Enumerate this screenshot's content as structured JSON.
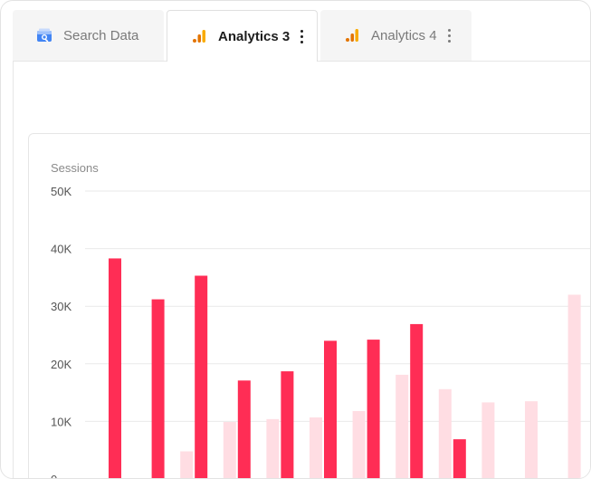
{
  "tabs": [
    {
      "label": "Search Data",
      "icon": "search-console-icon"
    },
    {
      "label": "Analytics 3",
      "icon": "analytics-bars-icon"
    },
    {
      "label": "Analytics 4",
      "icon": "analytics-bars-icon"
    }
  ],
  "colors": {
    "primary_series": "#ff2d55",
    "secondary_series": "#ffdde3",
    "analytics_orange": "#f9ab00",
    "analytics_dark": "#e37400"
  },
  "chart_data": {
    "type": "bar",
    "ylabel": "Sessions",
    "ylim": [
      0,
      50000
    ],
    "yticks": [
      "0",
      "10K",
      "20K",
      "30K",
      "40K",
      "50K"
    ],
    "ytick_values": [
      0,
      10000,
      20000,
      30000,
      40000,
      50000
    ],
    "series": [
      {
        "values": [
          38300,
          31200,
          35300,
          17100,
          18700,
          24000,
          24200,
          26900,
          6900,
          null,
          null,
          null
        ]
      },
      {
        "values": [
          null,
          null,
          4800,
          9900,
          10400,
          10700,
          11800,
          18100,
          15600,
          13300,
          13500,
          32000
        ]
      }
    ],
    "grid": true
  }
}
